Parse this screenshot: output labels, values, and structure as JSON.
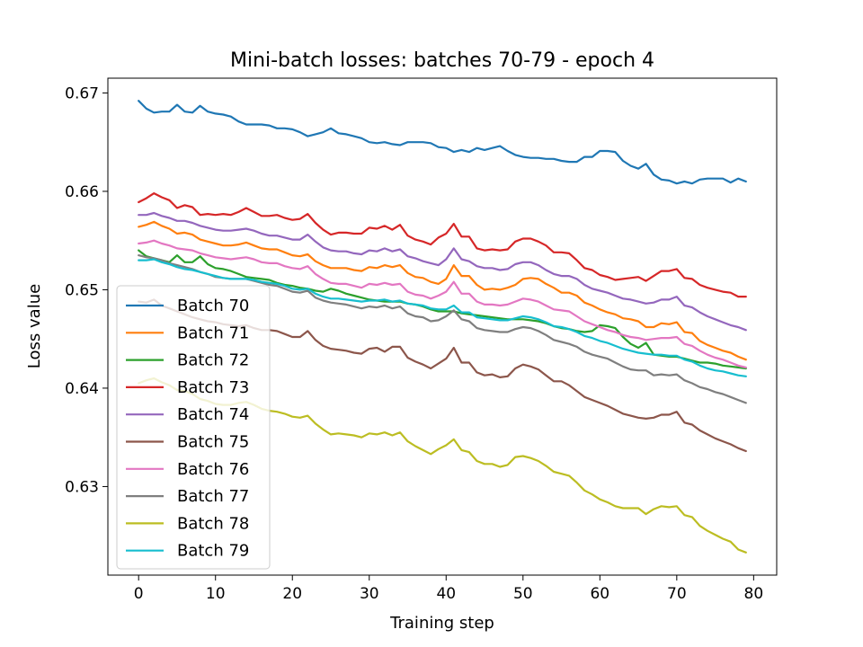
{
  "chart_data": {
    "type": "line",
    "title": "Mini-batch losses: batches 70-79 - epoch 4",
    "xlabel": "Training step",
    "ylabel": "Loss value",
    "xlim": [
      -4,
      83
    ],
    "ylim": [
      0.621,
      0.6715
    ],
    "xticks": [
      0,
      10,
      20,
      30,
      40,
      50,
      60,
      70,
      80
    ],
    "yticks": [
      0.63,
      0.64,
      0.65,
      0.66,
      0.67
    ],
    "ytick_labels": [
      "0.63",
      "0.64",
      "0.65",
      "0.66",
      "0.67"
    ],
    "legend_position": "lower-left",
    "grid": false,
    "x": [
      0,
      1,
      2,
      3,
      4,
      5,
      6,
      7,
      8,
      9,
      10,
      11,
      12,
      13,
      14,
      15,
      16,
      17,
      18,
      19,
      20,
      21,
      22,
      23,
      24,
      25,
      26,
      27,
      28,
      29,
      30,
      31,
      32,
      33,
      34,
      35,
      36,
      37,
      38,
      39,
      40,
      41,
      42,
      43,
      44,
      45,
      46,
      47,
      48,
      49,
      50,
      51,
      52,
      53,
      54,
      55,
      56,
      57,
      58,
      59,
      60,
      61,
      62,
      63,
      64,
      65,
      66,
      67,
      68,
      69,
      70,
      71,
      72,
      73,
      74,
      75,
      76,
      77,
      78,
      79
    ],
    "series": [
      {
        "name": "Batch 70",
        "color": "#1f77b4",
        "values": [
          0.6692,
          0.6684,
          0.668,
          0.6681,
          0.6681,
          0.6688,
          0.6681,
          0.668,
          0.6687,
          0.6681,
          0.6679,
          0.6678,
          0.6676,
          0.6671,
          0.6668,
          0.6668,
          0.6668,
          0.6667,
          0.6664,
          0.6664,
          0.6663,
          0.666,
          0.6656,
          0.6658,
          0.666,
          0.6664,
          0.6659,
          0.6658,
          0.6656,
          0.6654,
          0.665,
          0.6649,
          0.665,
          0.6648,
          0.6647,
          0.665,
          0.665,
          0.665,
          0.6649,
          0.6645,
          0.6644,
          0.664,
          0.6642,
          0.664,
          0.6644,
          0.6642,
          0.6644,
          0.6646,
          0.6641,
          0.6637,
          0.6635,
          0.6634,
          0.6634,
          0.6633,
          0.6633,
          0.6631,
          0.663,
          0.663,
          0.6635,
          0.6635,
          0.6641,
          0.6641,
          0.664,
          0.6631,
          0.6626,
          0.6623,
          0.6628,
          0.6617,
          0.6612,
          0.6611,
          0.6608,
          0.661,
          0.6608,
          0.6612,
          0.6613,
          0.6613,
          0.6613,
          0.6609,
          0.6613,
          0.661
        ]
      },
      {
        "name": "Batch 71",
        "color": "#ff7f0e",
        "values": [
          0.6564,
          0.6566,
          0.6569,
          0.6565,
          0.6562,
          0.6557,
          0.6558,
          0.6556,
          0.6551,
          0.6549,
          0.6547,
          0.6545,
          0.6545,
          0.6546,
          0.6548,
          0.6545,
          0.6542,
          0.6541,
          0.6541,
          0.6538,
          0.6535,
          0.6534,
          0.6536,
          0.6529,
          0.6525,
          0.6522,
          0.6522,
          0.6522,
          0.652,
          0.6519,
          0.6523,
          0.6522,
          0.6525,
          0.6523,
          0.6525,
          0.6517,
          0.6513,
          0.6512,
          0.6508,
          0.6506,
          0.6511,
          0.6525,
          0.6514,
          0.6514,
          0.6505,
          0.65,
          0.6501,
          0.65,
          0.6502,
          0.6505,
          0.6511,
          0.6512,
          0.6511,
          0.6506,
          0.6502,
          0.6497,
          0.6497,
          0.6494,
          0.6487,
          0.6484,
          0.648,
          0.6477,
          0.6475,
          0.6471,
          0.647,
          0.6468,
          0.6462,
          0.6462,
          0.6466,
          0.6465,
          0.6467,
          0.6457,
          0.6456,
          0.6448,
          0.6444,
          0.6441,
          0.6438,
          0.6436,
          0.6432,
          0.6429
        ]
      },
      {
        "name": "Batch 72",
        "color": "#2ca02c",
        "values": [
          0.654,
          0.6534,
          0.6532,
          0.653,
          0.6528,
          0.6535,
          0.6528,
          0.6528,
          0.6534,
          0.6526,
          0.6522,
          0.6521,
          0.6519,
          0.6516,
          0.6513,
          0.6512,
          0.6511,
          0.651,
          0.6507,
          0.6505,
          0.6504,
          0.6502,
          0.6501,
          0.6499,
          0.6498,
          0.6501,
          0.6499,
          0.6496,
          0.6494,
          0.6492,
          0.649,
          0.6489,
          0.6488,
          0.6488,
          0.6488,
          0.6486,
          0.6485,
          0.6483,
          0.648,
          0.6478,
          0.6478,
          0.6478,
          0.6476,
          0.6475,
          0.6474,
          0.6473,
          0.6472,
          0.6471,
          0.647,
          0.647,
          0.647,
          0.6469,
          0.6468,
          0.6466,
          0.6463,
          0.6461,
          0.646,
          0.6458,
          0.6457,
          0.6458,
          0.6464,
          0.6463,
          0.6461,
          0.6452,
          0.6445,
          0.6441,
          0.6446,
          0.6434,
          0.6433,
          0.6432,
          0.6432,
          0.643,
          0.6428,
          0.6426,
          0.6426,
          0.6425,
          0.6423,
          0.6422,
          0.6421,
          0.642
        ]
      },
      {
        "name": "Batch 73",
        "color": "#d62728",
        "values": [
          0.6589,
          0.6593,
          0.6598,
          0.6594,
          0.6591,
          0.6583,
          0.6586,
          0.6584,
          0.6576,
          0.6577,
          0.6576,
          0.6577,
          0.6576,
          0.6579,
          0.6583,
          0.6579,
          0.6575,
          0.6575,
          0.6576,
          0.6573,
          0.6571,
          0.6572,
          0.6577,
          0.6568,
          0.6561,
          0.6556,
          0.6558,
          0.6558,
          0.6557,
          0.6557,
          0.6563,
          0.6562,
          0.6565,
          0.6561,
          0.6566,
          0.6555,
          0.6551,
          0.6549,
          0.6546,
          0.6553,
          0.6557,
          0.6567,
          0.6554,
          0.6554,
          0.6542,
          0.654,
          0.6541,
          0.654,
          0.6541,
          0.6549,
          0.6552,
          0.6552,
          0.6549,
          0.6545,
          0.6538,
          0.6538,
          0.6537,
          0.653,
          0.6522,
          0.652,
          0.6515,
          0.6513,
          0.651,
          0.6511,
          0.6512,
          0.6513,
          0.6509,
          0.6514,
          0.6519,
          0.6519,
          0.6521,
          0.6512,
          0.6511,
          0.6505,
          0.6502,
          0.65,
          0.6498,
          0.6497,
          0.6493,
          0.6493
        ]
      },
      {
        "name": "Batch 74",
        "color": "#9467bd",
        "values": [
          0.6576,
          0.6576,
          0.6578,
          0.6575,
          0.6573,
          0.657,
          0.657,
          0.6568,
          0.6565,
          0.6563,
          0.6561,
          0.656,
          0.656,
          0.6561,
          0.6562,
          0.656,
          0.6557,
          0.6555,
          0.6555,
          0.6553,
          0.6551,
          0.6551,
          0.6556,
          0.6549,
          0.6543,
          0.654,
          0.6539,
          0.6539,
          0.6537,
          0.6536,
          0.654,
          0.6539,
          0.6542,
          0.6539,
          0.6541,
          0.6534,
          0.6532,
          0.6529,
          0.6527,
          0.6525,
          0.6531,
          0.6542,
          0.6531,
          0.6529,
          0.6524,
          0.6522,
          0.6522,
          0.652,
          0.6521,
          0.6526,
          0.6528,
          0.6528,
          0.6525,
          0.652,
          0.6516,
          0.6514,
          0.6514,
          0.6511,
          0.6505,
          0.6501,
          0.6499,
          0.6497,
          0.6494,
          0.6491,
          0.649,
          0.6488,
          0.6486,
          0.6487,
          0.649,
          0.649,
          0.6493,
          0.6484,
          0.6482,
          0.6477,
          0.6473,
          0.647,
          0.6467,
          0.6464,
          0.6462,
          0.6459
        ]
      },
      {
        "name": "Batch 75",
        "color": "#8c564b",
        "values": [
          0.6488,
          0.6487,
          0.649,
          0.6484,
          0.6481,
          0.6478,
          0.6475,
          0.6472,
          0.647,
          0.6468,
          0.6467,
          0.6465,
          0.6464,
          0.6463,
          0.6464,
          0.6461,
          0.6459,
          0.6459,
          0.6458,
          0.6455,
          0.6452,
          0.6452,
          0.6458,
          0.6449,
          0.6443,
          0.644,
          0.6439,
          0.6438,
          0.6436,
          0.6435,
          0.644,
          0.6441,
          0.6437,
          0.6442,
          0.6442,
          0.6431,
          0.6427,
          0.6424,
          0.642,
          0.6425,
          0.643,
          0.6441,
          0.6426,
          0.6426,
          0.6416,
          0.6413,
          0.6414,
          0.6411,
          0.6412,
          0.642,
          0.6424,
          0.6422,
          0.6419,
          0.6413,
          0.6407,
          0.6407,
          0.6403,
          0.6397,
          0.6391,
          0.6388,
          0.6385,
          0.6382,
          0.6378,
          0.6374,
          0.6372,
          0.637,
          0.6369,
          0.637,
          0.6373,
          0.6373,
          0.6376,
          0.6365,
          0.6363,
          0.6357,
          0.6353,
          0.6349,
          0.6346,
          0.6343,
          0.6339,
          0.6336
        ]
      },
      {
        "name": "Batch 76",
        "color": "#e377c2",
        "values": [
          0.6547,
          0.6548,
          0.655,
          0.6547,
          0.6545,
          0.6542,
          0.6541,
          0.654,
          0.6537,
          0.6535,
          0.6533,
          0.6532,
          0.6531,
          0.6532,
          0.6533,
          0.6531,
          0.6528,
          0.6527,
          0.6527,
          0.6524,
          0.6522,
          0.6521,
          0.6524,
          0.6516,
          0.6511,
          0.6507,
          0.6506,
          0.6506,
          0.6504,
          0.6502,
          0.6506,
          0.6505,
          0.6507,
          0.6505,
          0.6506,
          0.6498,
          0.6495,
          0.6494,
          0.6491,
          0.6494,
          0.6498,
          0.6508,
          0.6496,
          0.6496,
          0.6488,
          0.6485,
          0.6485,
          0.6484,
          0.6485,
          0.6488,
          0.6491,
          0.649,
          0.6488,
          0.6484,
          0.648,
          0.6479,
          0.6478,
          0.6473,
          0.6468,
          0.6465,
          0.6462,
          0.6459,
          0.6457,
          0.6454,
          0.6452,
          0.6451,
          0.6449,
          0.645,
          0.6451,
          0.6451,
          0.6452,
          0.6445,
          0.6443,
          0.6438,
          0.6434,
          0.6431,
          0.6429,
          0.6426,
          0.6423,
          0.6421
        ]
      },
      {
        "name": "Batch 77",
        "color": "#7f7f7f",
        "values": [
          0.6535,
          0.6533,
          0.6532,
          0.653,
          0.6527,
          0.6525,
          0.6523,
          0.6521,
          0.6518,
          0.6516,
          0.6513,
          0.6512,
          0.6511,
          0.6511,
          0.6511,
          0.6509,
          0.6507,
          0.6505,
          0.6504,
          0.6501,
          0.6498,
          0.6497,
          0.6499,
          0.6492,
          0.6489,
          0.6487,
          0.6486,
          0.6485,
          0.6483,
          0.6481,
          0.6483,
          0.6482,
          0.6484,
          0.6481,
          0.6483,
          0.6476,
          0.6473,
          0.6472,
          0.6468,
          0.6469,
          0.6473,
          0.6479,
          0.647,
          0.6468,
          0.6461,
          0.6459,
          0.6458,
          0.6457,
          0.6457,
          0.646,
          0.6462,
          0.6461,
          0.6458,
          0.6454,
          0.6449,
          0.6447,
          0.6445,
          0.6442,
          0.6437,
          0.6434,
          0.6432,
          0.643,
          0.6426,
          0.6422,
          0.6419,
          0.6418,
          0.6418,
          0.6413,
          0.6414,
          0.6413,
          0.6414,
          0.6408,
          0.6405,
          0.6401,
          0.6399,
          0.6396,
          0.6394,
          0.6391,
          0.6388,
          0.6385
        ]
      },
      {
        "name": "Batch 78",
        "color": "#bcbd22",
        "values": [
          0.6405,
          0.6408,
          0.641,
          0.6406,
          0.6403,
          0.6398,
          0.6397,
          0.6394,
          0.6389,
          0.6387,
          0.6384,
          0.6383,
          0.6383,
          0.6385,
          0.6386,
          0.6383,
          0.6379,
          0.6377,
          0.6376,
          0.6374,
          0.6371,
          0.637,
          0.6372,
          0.6364,
          0.6358,
          0.6353,
          0.6354,
          0.6353,
          0.6352,
          0.635,
          0.6354,
          0.6353,
          0.6355,
          0.6352,
          0.6355,
          0.6346,
          0.6341,
          0.6337,
          0.6333,
          0.6338,
          0.6342,
          0.6348,
          0.6337,
          0.6335,
          0.6326,
          0.6323,
          0.6323,
          0.632,
          0.6322,
          0.633,
          0.6331,
          0.6329,
          0.6326,
          0.6321,
          0.6315,
          0.6313,
          0.6311,
          0.6304,
          0.6296,
          0.6292,
          0.6287,
          0.6284,
          0.628,
          0.6278,
          0.6278,
          0.6278,
          0.6272,
          0.6277,
          0.628,
          0.6279,
          0.628,
          0.6271,
          0.6269,
          0.626,
          0.6255,
          0.6251,
          0.6247,
          0.6244,
          0.6236,
          0.6233
        ]
      },
      {
        "name": "Batch 79",
        "color": "#17becf",
        "values": [
          0.653,
          0.653,
          0.6531,
          0.6528,
          0.6526,
          0.6523,
          0.6521,
          0.652,
          0.6518,
          0.6516,
          0.6514,
          0.6512,
          0.6511,
          0.6511,
          0.6511,
          0.651,
          0.6508,
          0.6507,
          0.6506,
          0.6504,
          0.6501,
          0.65,
          0.6501,
          0.6496,
          0.6493,
          0.6491,
          0.6491,
          0.649,
          0.6489,
          0.6488,
          0.6489,
          0.6489,
          0.649,
          0.6488,
          0.6489,
          0.6486,
          0.6485,
          0.6484,
          0.6481,
          0.648,
          0.648,
          0.6484,
          0.6477,
          0.6477,
          0.6472,
          0.6471,
          0.647,
          0.6469,
          0.6469,
          0.6471,
          0.6473,
          0.6472,
          0.647,
          0.6467,
          0.6463,
          0.6462,
          0.646,
          0.6457,
          0.6453,
          0.6451,
          0.6448,
          0.6446,
          0.6443,
          0.644,
          0.6438,
          0.6436,
          0.6435,
          0.6434,
          0.6434,
          0.6433,
          0.6433,
          0.6429,
          0.6427,
          0.6423,
          0.642,
          0.6418,
          0.6417,
          0.6415,
          0.6413,
          0.6412
        ]
      }
    ]
  }
}
